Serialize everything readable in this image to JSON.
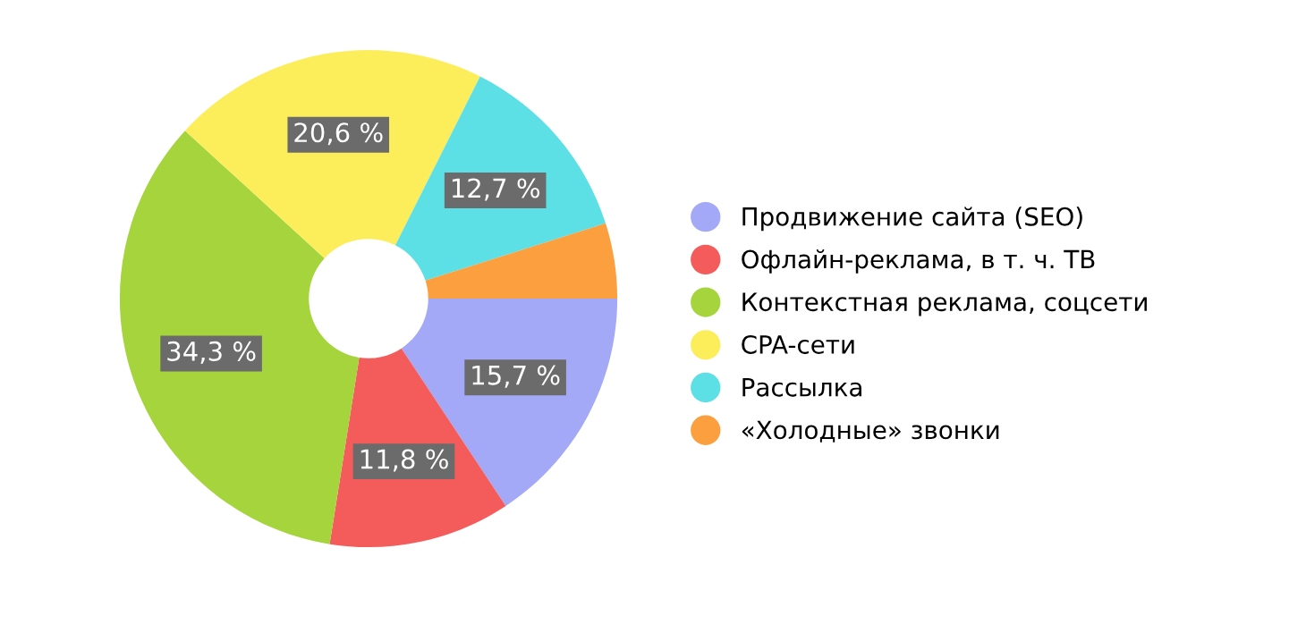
{
  "chart_data": {
    "type": "donut",
    "categories": [
      "Продвижение сайта (SEO)",
      "Офлайн-реклама, в т. ч. ТВ",
      "Контекстная реклама, соцсети",
      "CPA-сети",
      "Рассылка",
      "«Холодные» звонки"
    ],
    "values": [
      15.7,
      11.8,
      34.3,
      20.6,
      12.7,
      4.9
    ],
    "colors": [
      "#a3a8f7",
      "#f45b5b",
      "#a5d43d",
      "#fcee5a",
      "#5ddfe6",
      "#fb9f3f"
    ],
    "value_labels": [
      "15,7 %",
      "11,8 %",
      "34,3 %",
      "20,6 %",
      "12,7 %",
      null
    ],
    "legend": "right"
  }
}
